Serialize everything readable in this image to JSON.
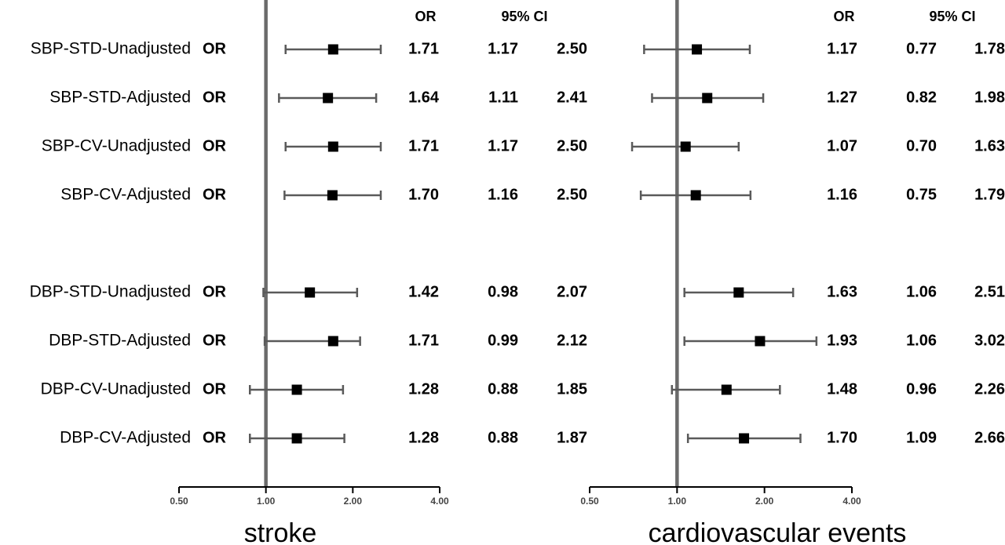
{
  "row_or_tag": "OR",
  "row_labels": [
    "SBP-STD-Unadjusted",
    "SBP-STD-Adjusted",
    "SBP-CV-Unadjusted",
    "SBP-CV-Adjusted",
    "DBP-STD-Unadjusted",
    "DBP-STD-Adjusted",
    "DBP-CV-Unadjusted",
    "DBP-CV-Adjusted"
  ],
  "colors": {
    "marker": "#000000",
    "ci_line": "#5a5a5a",
    "reference_line": "#6b6b6b",
    "axis": "#000000"
  },
  "chart_data": [
    {
      "type": "forest",
      "title": "stroke",
      "column_headers": {
        "or": "OR",
        "ci": "95% CI"
      },
      "x_scale": "log2",
      "xlim": [
        0.5,
        4.0
      ],
      "x_ticks": [
        "0.50",
        "1.00",
        "2.00",
        "4.00"
      ],
      "reference_value": 1.0,
      "categories": [
        "SBP-STD-Unadjusted",
        "SBP-STD-Adjusted",
        "SBP-CV-Unadjusted",
        "SBP-CV-Adjusted",
        "DBP-STD-Unadjusted",
        "DBP-STD-Adjusted",
        "DBP-CV-Unadjusted",
        "DBP-CV-Adjusted"
      ],
      "or": [
        "1.71",
        "1.64",
        "1.71",
        "1.70",
        "1.42",
        "1.71",
        "1.28",
        "1.28"
      ],
      "lower": [
        "1.17",
        "1.11",
        "1.17",
        "1.16",
        "0.98",
        "0.99",
        "0.88",
        "0.88"
      ],
      "upper": [
        "2.50",
        "2.41",
        "2.50",
        "2.50",
        "2.07",
        "2.12",
        "1.85",
        "1.87"
      ]
    },
    {
      "type": "forest",
      "title": "cardiovascular events",
      "column_headers": {
        "or": "OR",
        "ci": "95% CI"
      },
      "x_scale": "log2",
      "xlim": [
        0.5,
        4.0
      ],
      "x_ticks": [
        "0.50",
        "1.00",
        "2.00",
        "4.00"
      ],
      "reference_value": 1.0,
      "categories": [
        "SBP-STD-Unadjusted",
        "SBP-STD-Adjusted",
        "SBP-CV-Unadjusted",
        "SBP-CV-Adjusted",
        "DBP-STD-Unadjusted",
        "DBP-STD-Adjusted",
        "DBP-CV-Unadjusted",
        "DBP-CV-Adjusted"
      ],
      "or": [
        "1.17",
        "1.27",
        "1.07",
        "1.16",
        "1.63",
        "1.93",
        "1.48",
        "1.70"
      ],
      "lower": [
        "0.77",
        "0.82",
        "0.70",
        "0.75",
        "1.06",
        "1.06",
        "0.96",
        "1.09"
      ],
      "upper": [
        "1.78",
        "1.98",
        "1.63",
        "1.79",
        "2.51",
        "3.02",
        "2.26",
        "2.66"
      ]
    }
  ]
}
